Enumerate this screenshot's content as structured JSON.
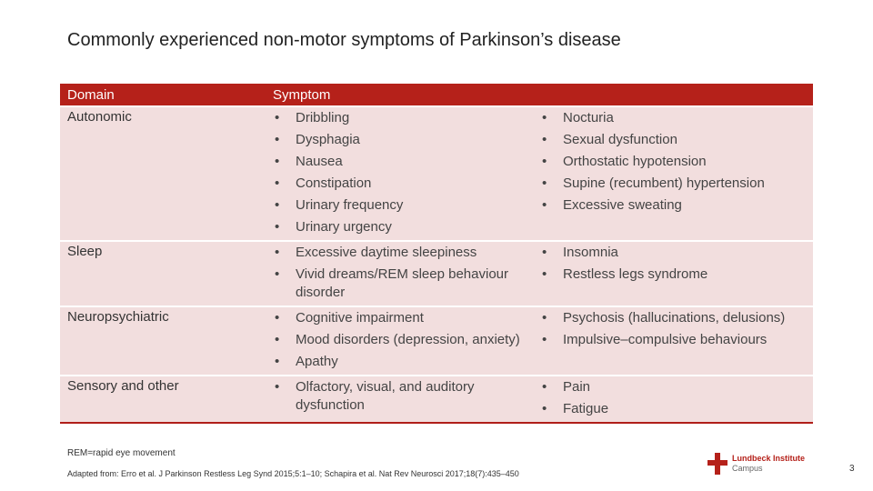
{
  "title": "Commonly experienced non-motor symptoms of Parkinson’s disease",
  "table": {
    "header": [
      "Domain",
      "Symptom"
    ],
    "rows": [
      {
        "domain": "Autonomic",
        "col1": [
          "Dribbling",
          "Dysphagia",
          "Nausea",
          "Constipation",
          "Urinary frequency",
          "Urinary urgency"
        ],
        "col2": [
          "Nocturia",
          "Sexual dysfunction",
          "Orthostatic hypotension",
          "Supine (recumbent) hypertension",
          "Excessive sweating"
        ]
      },
      {
        "domain": "Sleep",
        "col1": [
          "Excessive daytime sleepiness",
          "Vivid dreams/REM sleep behaviour disorder"
        ],
        "col2": [
          "Insomnia",
          "Restless legs syndrome"
        ]
      },
      {
        "domain": "Neuropsychiatric",
        "col1": [
          "Cognitive impairment",
          "Mood disorders (depression, anxiety)",
          "Apathy"
        ],
        "col2": [
          "Psychosis (hallucinations, delusions)",
          "Impulsive–compulsive behaviours"
        ]
      },
      {
        "domain": "Sensory and other",
        "col1": [
          "Olfactory, visual, and auditory dysfunction"
        ],
        "col2": [
          "Pain",
          "Fatigue"
        ]
      }
    ]
  },
  "footnote": "REM=rapid eye movement",
  "reference": "Adapted from: Erro et al. J Parkinson Restless Leg Synd 2015;5:1–10; Schapira et al. Nat Rev Neurosci 2017;18(7):435–450",
  "logo": {
    "name": "Lundbeck Institute",
    "sub": "Campus"
  },
  "page_number": "3"
}
